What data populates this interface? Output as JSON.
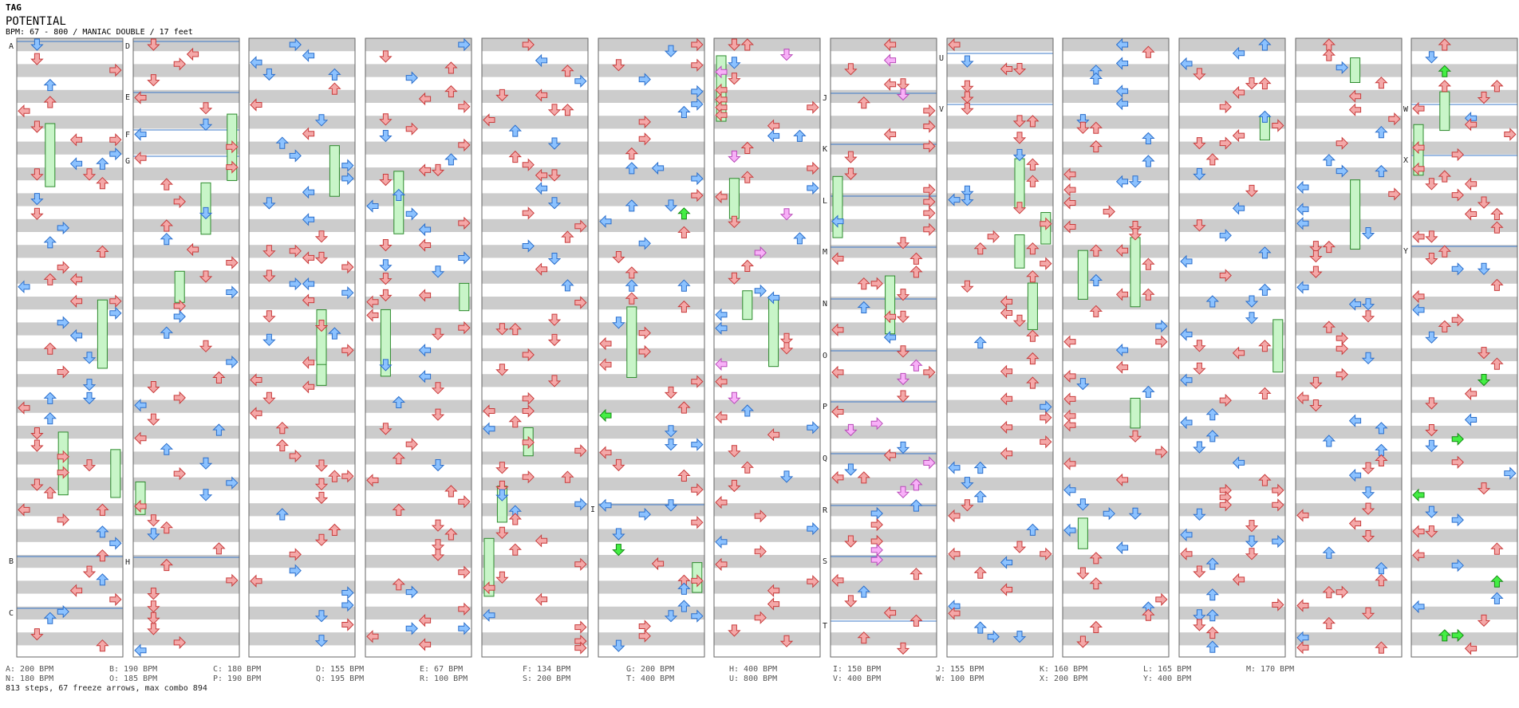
{
  "header": {
    "artist": "TAG",
    "title": "POTENTIAL",
    "info": "BPM: 67 - 800 / MANIAC DOUBLE / 17 feet"
  },
  "colors": {
    "stripe": "#cccccc",
    "lane_bg": "#ffffff",
    "border": "#666666",
    "bpm_line": "#3b78c8",
    "arrow_red": "#f4a8a8",
    "arrow_red_edge": "#c83b3b",
    "arrow_blue": "#8cc2ff",
    "arrow_blue_edge": "#2a6ecb",
    "arrow_pink": "#f8b0f8",
    "arrow_pink_edge": "#b84ab8",
    "arrow_green": "#44ee44",
    "arrow_green_edge": "#138a13",
    "freeze_body": "#c8f5c8",
    "freeze_edge": "#2c8a2c"
  },
  "section_labels": [
    "A",
    "B",
    "C",
    "D",
    "E",
    "F",
    "G",
    "H",
    "I",
    "J",
    "K",
    "L",
    "M",
    "N",
    "O",
    "P",
    "Q",
    "R",
    "S",
    "T",
    "U",
    "V",
    "W",
    "X",
    "Y"
  ],
  "bpm_legend": [
    [
      "A: 200 BPM",
      "B: 190 BPM",
      "C: 180 BPM",
      "D: 155 BPM",
      "E: 67 BPM",
      "F: 134 BPM",
      "G: 200 BPM",
      "H: 400 BPM",
      "I: 150 BPM",
      "J: 155 BPM",
      "K: 160 BPM",
      "L: 165 BPM",
      "M: 170 BPM"
    ],
    [
      "N: 180 BPM",
      "O: 185 BPM",
      "P: 190 BPM",
      "Q: 195 BPM",
      "R: 100 BPM",
      "S: 200 BPM",
      "T: 400 BPM",
      "U: 800 BPM",
      "V: 400 BPM",
      "W: 100 BPM",
      "X: 200 BPM",
      "Y: 400 BPM",
      ""
    ]
  ],
  "summary": "813 steps, 67 freeze arrows, max combo 894"
}
